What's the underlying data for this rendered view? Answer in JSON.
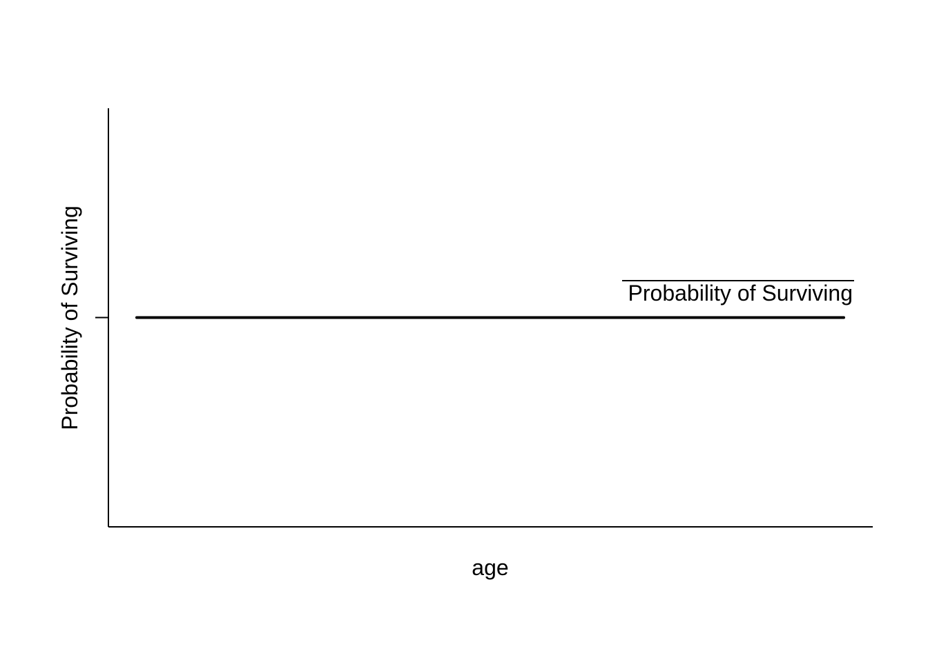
{
  "chart_data": {
    "type": "line",
    "title": "",
    "xlabel": "age",
    "ylabel": "Probability of Surviving",
    "xlim": [
      0,
      1
    ],
    "ylim": [
      0,
      1
    ],
    "grid": false,
    "legend_placement": "right",
    "series": [
      {
        "name": "Probability of Surviving",
        "x": [
          0,
          1
        ],
        "values": [
          0.5,
          0.5
        ]
      }
    ],
    "annotation": "Probability of Surviving"
  }
}
